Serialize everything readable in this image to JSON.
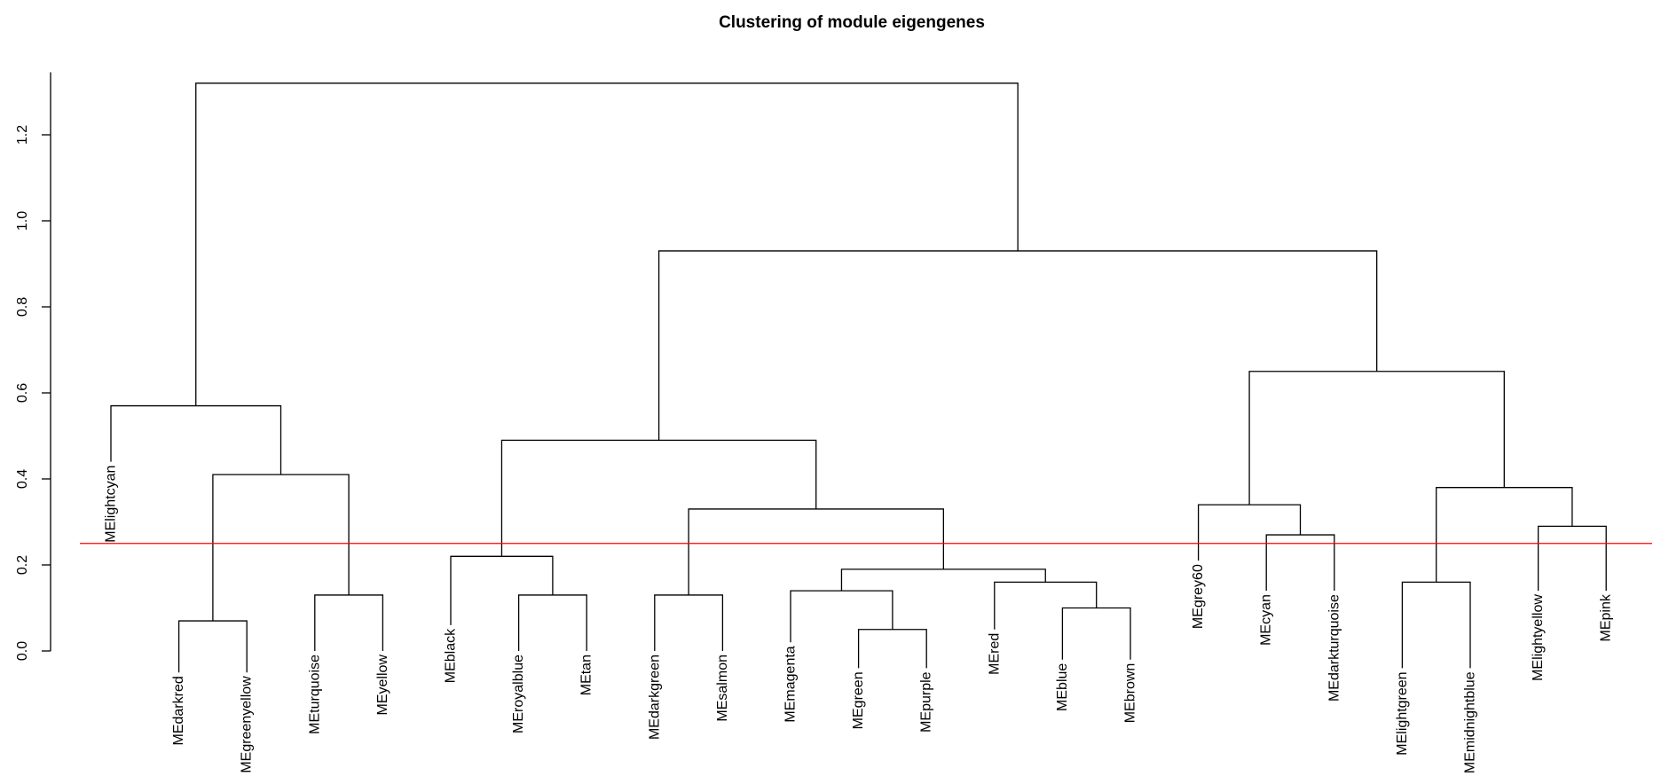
{
  "chart_data": {
    "type": "dendrogram",
    "title": "Clustering of module eigengenes",
    "xlabel": "",
    "ylabel": "",
    "ylim": [
      0,
      1.3
    ],
    "yticks": [
      "0.0",
      "0.2",
      "0.4",
      "0.6",
      "0.8",
      "1.0",
      "1.2"
    ],
    "cut_height": 0.25,
    "leaves": [
      {
        "name": "MElightcyan",
        "height": 0.44
      },
      {
        "name": "MEdarkred",
        "height": -0.05
      },
      {
        "name": "MEgreenyellow",
        "height": -0.05
      },
      {
        "name": "MEturquoise",
        "height": 0.0
      },
      {
        "name": "MEyellow",
        "height": 0.0
      },
      {
        "name": "MEblack",
        "height": 0.06
      },
      {
        "name": "MEroyalblue",
        "height": 0.0
      },
      {
        "name": "MEtan",
        "height": 0.0
      },
      {
        "name": "MEdarkgreen",
        "height": 0.0
      },
      {
        "name": "MEsalmon",
        "height": 0.0
      },
      {
        "name": "MEmagenta",
        "height": 0.02
      },
      {
        "name": "MEgreen",
        "height": -0.04
      },
      {
        "name": "MEpurple",
        "height": -0.04
      },
      {
        "name": "MEred",
        "height": 0.05
      },
      {
        "name": "MEblue",
        "height": -0.02
      },
      {
        "name": "MEbrown",
        "height": -0.02
      },
      {
        "name": "MEgrey60",
        "height": 0.21
      },
      {
        "name": "MEcyan",
        "height": 0.14
      },
      {
        "name": "MEdarkturquoise",
        "height": 0.14
      },
      {
        "name": "MElightgreen",
        "height": -0.04
      },
      {
        "name": "MEmidnightblue",
        "height": -0.04
      },
      {
        "name": "MElightyellow",
        "height": 0.14
      },
      {
        "name": "MEpink",
        "height": 0.14
      }
    ],
    "merges": [
      {
        "id": "n1",
        "left": "MEdarkred",
        "right": "MEgreenyellow",
        "height": 0.07
      },
      {
        "id": "n2",
        "left": "MEturquoise",
        "right": "MEyellow",
        "height": 0.13
      },
      {
        "id": "n3",
        "left": "n1",
        "right": "n2",
        "height": 0.41
      },
      {
        "id": "n4",
        "left": "MElightcyan",
        "right": "n3",
        "height": 0.57
      },
      {
        "id": "n5",
        "left": "MEroyalblue",
        "right": "MEtan",
        "height": 0.13
      },
      {
        "id": "n6",
        "left": "MEblack",
        "right": "n5",
        "height": 0.22
      },
      {
        "id": "n7",
        "left": "MEdarkgreen",
        "right": "MEsalmon",
        "height": 0.13
      },
      {
        "id": "n8",
        "left": "MEgreen",
        "right": "MEpurple",
        "height": 0.05
      },
      {
        "id": "n9",
        "left": "MEmagenta",
        "right": "n8",
        "height": 0.14
      },
      {
        "id": "n10",
        "left": "MEblue",
        "right": "MEbrown",
        "height": 0.1
      },
      {
        "id": "n11",
        "left": "MEred",
        "right": "n10",
        "height": 0.16
      },
      {
        "id": "n12",
        "left": "n9",
        "right": "n11",
        "height": 0.19
      },
      {
        "id": "n13",
        "left": "n7",
        "right": "n12",
        "height": 0.33
      },
      {
        "id": "n14",
        "left": "n6",
        "right": "n13",
        "height": 0.49
      },
      {
        "id": "n15",
        "left": "MEcyan",
        "right": "MEdarkturquoise",
        "height": 0.27
      },
      {
        "id": "n16",
        "left": "MEgrey60",
        "right": "n15",
        "height": 0.34
      },
      {
        "id": "n17",
        "left": "MElightgreen",
        "right": "MEmidnightblue",
        "height": 0.16
      },
      {
        "id": "n18",
        "left": "MElightyellow",
        "right": "MEpink",
        "height": 0.29
      },
      {
        "id": "n19",
        "left": "n17",
        "right": "n18",
        "height": 0.38
      },
      {
        "id": "n20",
        "left": "n16",
        "right": "n19",
        "height": 0.65
      },
      {
        "id": "n21",
        "left": "n14",
        "right": "n20",
        "height": 0.93
      },
      {
        "id": "n22",
        "left": "n4",
        "right": "n21",
        "height": 1.32
      }
    ],
    "colors": {
      "lines": "#000000",
      "cut_line": "#ff0000"
    }
  }
}
